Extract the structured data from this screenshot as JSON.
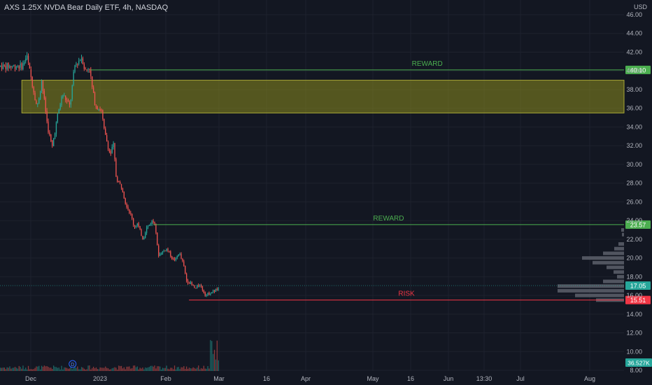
{
  "header": {
    "title": "AXS 1.25X NVDA Bear Daily ETF, 4h, NASDAQ",
    "currency": "USD"
  },
  "colors": {
    "background": "#131722",
    "up": "#26a69a",
    "down": "#ef5350",
    "reward": "#4caf50",
    "risk": "#f23645",
    "zone_fill": "#8b8b1e",
    "grid": "#1e222d",
    "volume_profile": "#5d606b"
  },
  "chart_data": {
    "type": "candlestick",
    "y_axis": {
      "min": 8,
      "max": 46,
      "ticks": [
        "46.00",
        "44.00",
        "42.00",
        "40.00",
        "38.00",
        "36.00",
        "34.00",
        "32.00",
        "30.00",
        "28.00",
        "26.00",
        "24.00",
        "22.00",
        "20.00",
        "18.00",
        "16.00",
        "14.00",
        "12.00",
        "10.00",
        "8.00"
      ]
    },
    "x_axis": {
      "labels": [
        "Dec",
        "2023",
        "Feb",
        "Mar",
        "16",
        "Apr",
        "May",
        "16",
        "Jun",
        "13:30",
        "Jul",
        "Aug"
      ]
    },
    "price_path": [
      [
        "2022-11-25",
        40.5
      ],
      [
        "2022-11-28",
        41.6
      ],
      [
        "2022-12-01",
        39.2
      ],
      [
        "2022-12-05",
        36.0
      ],
      [
        "2022-12-08",
        39.0
      ],
      [
        "2022-12-12",
        34.0
      ],
      [
        "2022-12-15",
        31.8
      ],
      [
        "2022-12-19",
        35.5
      ],
      [
        "2022-12-22",
        37.5
      ],
      [
        "2022-12-27",
        36.2
      ],
      [
        "2022-12-30",
        40.5
      ],
      [
        "2023-01-04",
        41.5
      ],
      [
        "2023-01-06",
        40.0
      ],
      [
        "2023-01-09",
        40.4
      ],
      [
        "2023-01-11",
        38.0
      ],
      [
        "2023-01-13",
        36.3
      ],
      [
        "2023-01-17",
        35.8
      ],
      [
        "2023-01-19",
        33.5
      ],
      [
        "2023-01-23",
        31.0
      ],
      [
        "2023-01-25",
        32.2
      ],
      [
        "2023-01-27",
        28.5
      ],
      [
        "2023-01-31",
        27.5
      ],
      [
        "2023-02-02",
        26.0
      ],
      [
        "2023-02-06",
        24.5
      ],
      [
        "2023-02-08",
        23.3
      ],
      [
        "2023-02-10",
        23.7
      ],
      [
        "2023-02-14",
        22.0
      ],
      [
        "2023-02-16",
        23.2
      ],
      [
        "2023-02-20",
        23.9
      ],
      [
        "2023-02-22",
        23.8
      ],
      [
        "2023-02-24",
        20.3
      ],
      [
        "2023-02-28",
        20.8
      ],
      [
        "2023-03-02",
        21.0
      ],
      [
        "2023-03-06",
        19.8
      ],
      [
        "2023-03-08",
        19.9
      ],
      [
        "2023-03-10",
        20.6
      ],
      [
        "2023-03-13",
        19.3
      ],
      [
        "2023-03-15",
        17.6
      ],
      [
        "2023-03-17",
        17.4
      ],
      [
        "2023-03-21",
        16.7
      ],
      [
        "2023-03-24",
        17.2
      ],
      [
        "2023-03-28",
        16.0
      ],
      [
        "2023-03-31",
        16.3
      ],
      [
        "2023-04-04",
        16.6
      ],
      [
        "2023-04-06",
        16.6
      ]
    ],
    "volume": {
      "last_label": "36.527K"
    },
    "horizontal_lines": [
      {
        "label": "REWARD",
        "price": 40.1,
        "price_label": "40.10",
        "from": "2023-01-10",
        "color": "#4caf50"
      },
      {
        "label": "REWARD",
        "price": 23.57,
        "price_label": "23.57",
        "from": "2023-02-21",
        "color": "#4caf50"
      },
      {
        "label": "RISK",
        "price": 15.51,
        "price_label": "15.51",
        "from": "2023-03-17",
        "color": "#f23645"
      }
    ],
    "zones": [
      {
        "from_price": 35.5,
        "to_price": 39.0,
        "from": "2022-11-25",
        "color": "#8b8b1e"
      }
    ],
    "last_price": {
      "price": 17.05,
      "label": "17.05"
    },
    "event_marker": {
      "date": "2022-12-29",
      "label": "D"
    }
  }
}
